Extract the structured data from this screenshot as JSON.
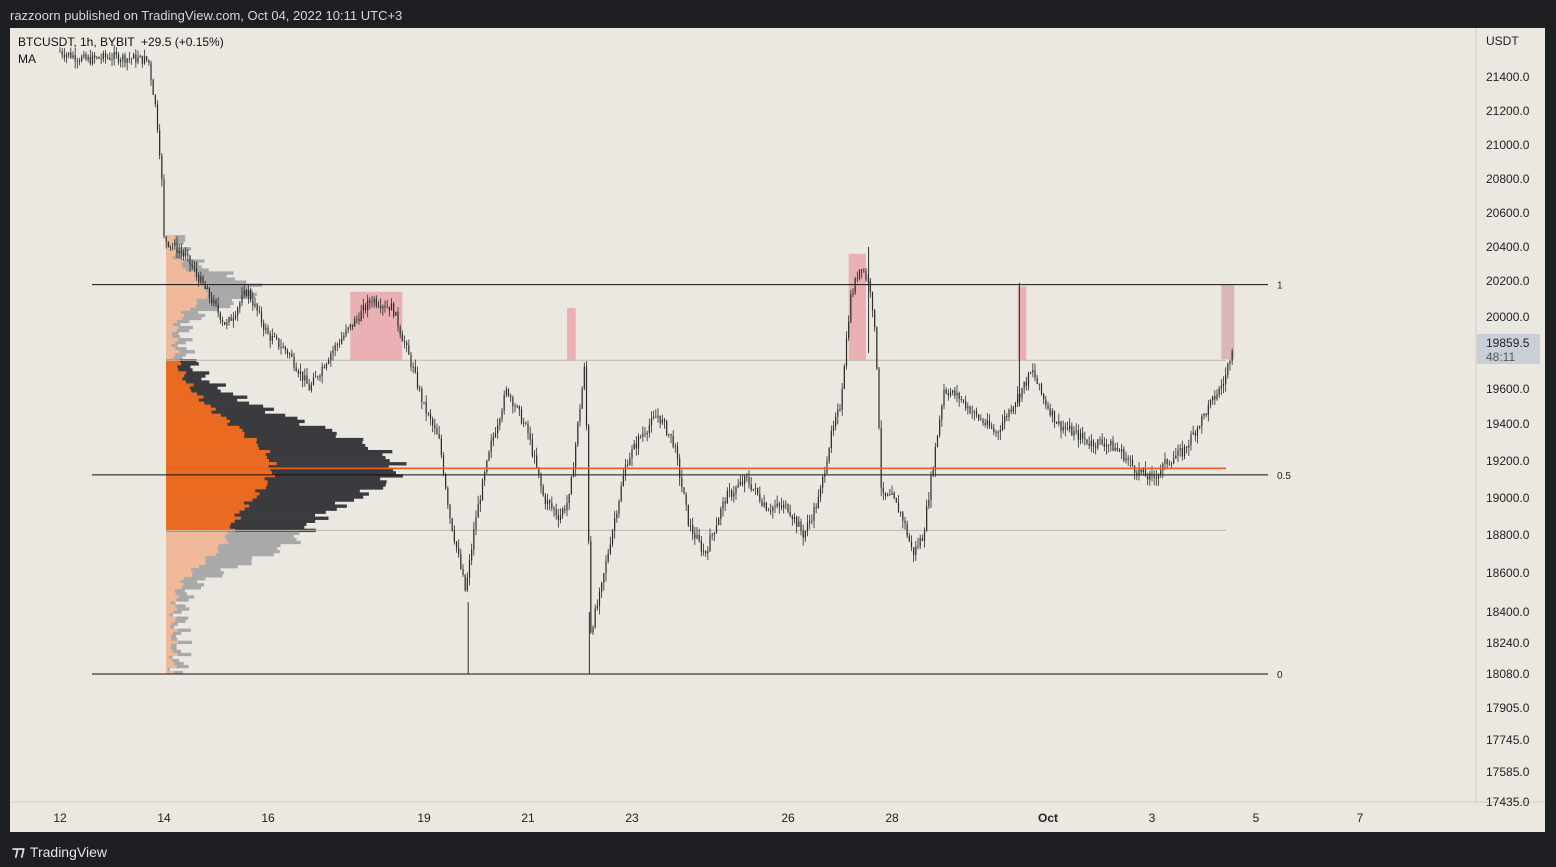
{
  "header": {
    "publisher": "razzoorn published on TradingView.com, Oct 04, 2022 10:11 UTC+3"
  },
  "footer": {
    "brand": "TradingView",
    "brand_icon": "tradingview-logo-icon"
  },
  "legend": {
    "symbol": "BTCUSDT, 1h, BYBIT",
    "change": "+29.5 (+0.15%)",
    "indicator": "MA"
  },
  "colors": {
    "background": "#ebe8e1",
    "candle": "#2b2b2b",
    "poc_line": "#e8631c",
    "value_area_fill": "#ea6a21",
    "volume_dark": "#3a3b3f",
    "volume_grey": "#a9a9a9",
    "volume_peach": "#f0b99a",
    "zone_fill": "#eba6aa"
  },
  "chart_data": {
    "type": "candlestick",
    "symbol": "BTCUSDT",
    "interval": "1h",
    "exchange": "BYBIT",
    "currency": "USDT",
    "ylim": [
      17435,
      21650
    ],
    "x_ticks": [
      "12",
      "14",
      "16",
      "19",
      "21",
      "23",
      "26",
      "28",
      "Oct",
      "3",
      "5",
      "7"
    ],
    "y_ticks": [
      "21400.0",
      "21200.0",
      "21000.0",
      "20800.0",
      "20600.0",
      "20400.0",
      "20200.0",
      "20000.0",
      "19600.0",
      "19400.0",
      "19200.0",
      "19000.0",
      "18800.0",
      "18600.0",
      "18400.0",
      "18240.0",
      "18080.0",
      "17905.0",
      "17745.0",
      "17585.0",
      "17435.0"
    ],
    "y_tick_values": [
      21400,
      21200,
      21000,
      20800,
      20600,
      20400,
      20200,
      20000,
      19600,
      19400,
      19200,
      19000,
      18800,
      18600,
      18400,
      18240,
      18080,
      17905,
      17745,
      17585,
      17435
    ],
    "last_price": {
      "value": "19859.5",
      "countdown": "48:11"
    },
    "fib_levels": [
      {
        "label": "1",
        "price": 20180
      },
      {
        "label": "0.5",
        "price": 19125
      },
      {
        "label": "0",
        "price": 18080
      }
    ],
    "poc_price": 19160,
    "value_area": {
      "high": 19760,
      "low": 18825
    },
    "supply_zones": [
      {
        "from": "Sep 17 14:00",
        "to": "Sep 18 14:00",
        "high": 20140,
        "low": 19760
      },
      {
        "from": "Sep 21 18:00",
        "to": "Sep 21 22:00",
        "high": 20050,
        "low": 19760
      },
      {
        "from": "Sep 27 04:00",
        "to": "Sep 27 12:00",
        "high": 20360,
        "low": 19760
      },
      {
        "from": "Sep 30 10:00",
        "to": "Sep 30 14:00",
        "high": 20170,
        "low": 19760
      },
      {
        "from": "Oct 4 08:00",
        "to": "Oct 4 14:00",
        "high": 20180,
        "low": 19765
      }
    ],
    "price_path": [
      [
        12.0,
        21550
      ],
      [
        12.5,
        21500
      ],
      [
        13.0,
        21520
      ],
      [
        13.7,
        21500
      ],
      [
        13.85,
        21200
      ],
      [
        13.95,
        20850
      ],
      [
        14.0,
        20450
      ],
      [
        14.4,
        20350
      ],
      [
        14.8,
        20150
      ],
      [
        15.2,
        19950
      ],
      [
        15.6,
        20150
      ],
      [
        16.0,
        19900
      ],
      [
        16.4,
        19800
      ],
      [
        16.8,
        19600
      ],
      [
        17.2,
        19800
      ],
      [
        17.6,
        19950
      ],
      [
        18.0,
        20100
      ],
      [
        18.4,
        20050
      ],
      [
        18.8,
        19700
      ],
      [
        19.0,
        19500
      ],
      [
        19.3,
        19300
      ],
      [
        19.5,
        18900
      ],
      [
        19.8,
        18500
      ],
      [
        20.0,
        18900
      ],
      [
        20.3,
        19300
      ],
      [
        20.6,
        19600
      ],
      [
        21.0,
        19350
      ],
      [
        21.3,
        19000
      ],
      [
        21.6,
        18900
      ],
      [
        21.8,
        19000
      ],
      [
        22.0,
        19500
      ],
      [
        22.1,
        19750
      ],
      [
        22.2,
        18300
      ],
      [
        22.4,
        18500
      ],
      [
        22.6,
        18800
      ],
      [
        22.9,
        19200
      ],
      [
        23.2,
        19350
      ],
      [
        23.5,
        19450
      ],
      [
        23.8,
        19300
      ],
      [
        24.1,
        18850
      ],
      [
        24.4,
        18700
      ],
      [
        24.8,
        19000
      ],
      [
        25.2,
        19100
      ],
      [
        25.6,
        18950
      ],
      [
        26.0,
        18950
      ],
      [
        26.3,
        18800
      ],
      [
        26.6,
        19000
      ],
      [
        26.8,
        19300
      ],
      [
        27.0,
        19500
      ],
      [
        27.2,
        20100
      ],
      [
        27.4,
        20300
      ],
      [
        27.6,
        20150
      ],
      [
        27.7,
        19800
      ],
      [
        27.8,
        19000
      ],
      [
        28.0,
        19000
      ],
      [
        28.2,
        18900
      ],
      [
        28.4,
        18700
      ],
      [
        28.6,
        18800
      ],
      [
        28.8,
        19200
      ],
      [
        29.0,
        19600
      ],
      [
        29.3,
        19550
      ],
      [
        29.6,
        19450
      ],
      [
        30.0,
        19350
      ],
      [
        30.3,
        19500
      ],
      [
        30.5,
        19600
      ],
      [
        30.7,
        19700
      ],
      [
        30.9,
        19550
      ],
      [
        31.2,
        19400
      ],
      [
        31.5,
        19350
      ],
      [
        31.8,
        19300
      ],
      [
        32.1,
        19300
      ],
      [
        32.4,
        19250
      ],
      [
        32.7,
        19150
      ],
      [
        33.0,
        19100
      ],
      [
        33.3,
        19200
      ],
      [
        33.6,
        19250
      ],
      [
        33.9,
        19400
      ],
      [
        34.2,
        19550
      ],
      [
        34.4,
        19650
      ],
      [
        34.55,
        19850
      ]
    ],
    "volume_profile_note": "horizontal volume profile anchored Sep 14"
  }
}
